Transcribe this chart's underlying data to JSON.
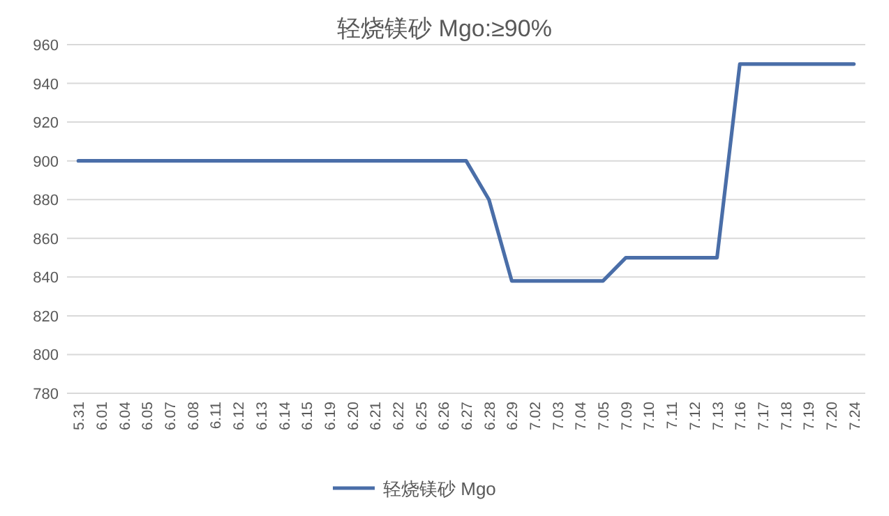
{
  "chart_data": {
    "type": "line",
    "title": "轻烧镁砂 Mgo:≥90%",
    "categories": [
      "5.31",
      "6.01",
      "6.04",
      "6.05",
      "6.07",
      "6.08",
      "6.11",
      "6.12",
      "6.13",
      "6.14",
      "6.15",
      "6.19",
      "6.20",
      "6.21",
      "6.22",
      "6.25",
      "6.26",
      "6.27",
      "6.28",
      "6.29",
      "7.02",
      "7.03",
      "7.04",
      "7.05",
      "7.09",
      "7.10",
      "7.11",
      "7.12",
      "7.13",
      "7.16",
      "7.17",
      "7.18",
      "7.19",
      "7.20",
      "7.24"
    ],
    "series": [
      {
        "name": "轻烧镁砂 Mgo",
        "color": "#4a6ea8",
        "values": [
          900,
          900,
          900,
          900,
          900,
          900,
          900,
          900,
          900,
          900,
          900,
          900,
          900,
          900,
          900,
          900,
          900,
          900,
          880,
          838,
          838,
          838,
          838,
          838,
          850,
          850,
          850,
          850,
          850,
          950,
          950,
          950,
          950,
          950,
          950
        ]
      }
    ],
    "ylim": [
      780,
      960
    ],
    "yticks": [
      780,
      800,
      820,
      840,
      860,
      880,
      900,
      920,
      940,
      960
    ],
    "grid": "y",
    "legend": "bottom",
    "marker": "none",
    "line_style": "solid"
  }
}
